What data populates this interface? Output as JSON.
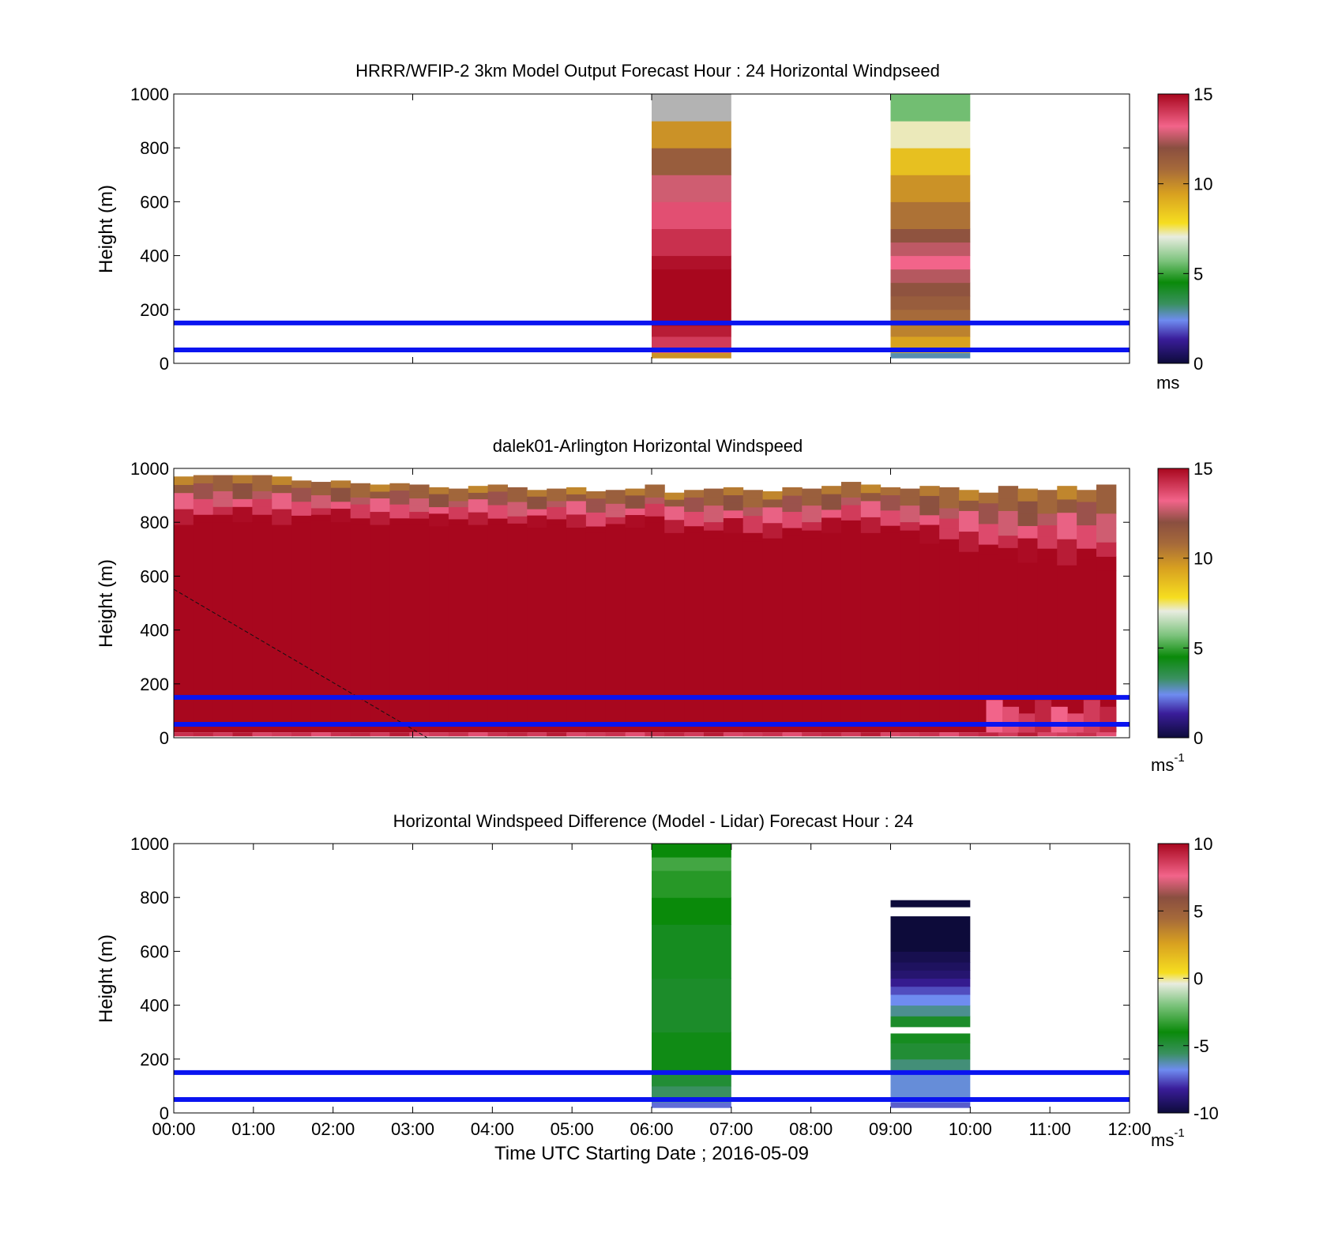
{
  "chart_data": [
    {
      "type": "heatmap",
      "title": "HRRR/WFIP-2 3km Model Output   Forecast Hour : 24 Horizontal Windpseed",
      "ylabel": "Height (m)",
      "ylim": [
        0,
        1000
      ],
      "yticks": [
        "0",
        "200",
        "400",
        "600",
        "800",
        "1000"
      ],
      "xlim_hours": [
        0,
        12
      ],
      "colorbar": {
        "ticks": [
          "0",
          "5",
          "10",
          "15"
        ],
        "range": [
          0,
          15
        ],
        "unit_label": "ms"
      },
      "reference_lines_m": [
        50,
        150
      ],
      "columns": [
        {
          "start_hour": 6,
          "end_hour": 7,
          "cells": [
            {
              "y0": 20,
              "y1": 40,
              "v": 9.8
            },
            {
              "y0": 40,
              "y1": 60,
              "v": 13.4
            },
            {
              "y0": 60,
              "y1": 100,
              "v": 14.0
            },
            {
              "y0": 100,
              "y1": 140,
              "v": 14.6
            },
            {
              "y0": 140,
              "y1": 200,
              "v": 15.0
            },
            {
              "y0": 200,
              "y1": 350,
              "v": 15.0
            },
            {
              "y0": 350,
              "y1": 400,
              "v": 14.8
            },
            {
              "y0": 400,
              "y1": 500,
              "v": 14.2
            },
            {
              "y0": 500,
              "y1": 600,
              "v": 13.6
            },
            {
              "y0": 600,
              "y1": 700,
              "v": 12.8
            },
            {
              "y0": 700,
              "y1": 800,
              "v": 11.4
            },
            {
              "y0": 800,
              "y1": 900,
              "v": 9.8
            },
            {
              "y0": 900,
              "y1": 1000,
              "v": null,
              "note": "grey"
            }
          ]
        },
        {
          "start_hour": 9,
          "end_hour": 10,
          "cells": [
            {
              "y0": 20,
              "y1": 40,
              "v": 2.8
            },
            {
              "y0": 40,
              "y1": 60,
              "v": 8.6
            },
            {
              "y0": 60,
              "y1": 100,
              "v": 9.4
            },
            {
              "y0": 100,
              "y1": 140,
              "v": 10.2
            },
            {
              "y0": 140,
              "y1": 200,
              "v": 10.8
            },
            {
              "y0": 200,
              "y1": 250,
              "v": 11.4
            },
            {
              "y0": 250,
              "y1": 300,
              "v": 11.8
            },
            {
              "y0": 300,
              "y1": 350,
              "v": 12.5
            },
            {
              "y0": 350,
              "y1": 400,
              "v": 13.2
            },
            {
              "y0": 400,
              "y1": 450,
              "v": 12.6
            },
            {
              "y0": 450,
              "y1": 500,
              "v": 11.8
            },
            {
              "y0": 500,
              "y1": 600,
              "v": 10.6
            },
            {
              "y0": 600,
              "y1": 700,
              "v": 9.8
            },
            {
              "y0": 700,
              "y1": 800,
              "v": 8.6
            },
            {
              "y0": 800,
              "y1": 900,
              "v": 7.2
            },
            {
              "y0": 900,
              "y1": 1000,
              "v": 5.6
            }
          ]
        }
      ]
    },
    {
      "type": "heatmap",
      "title": "dalek01-Arlington  Horizontal Windspeed",
      "ylabel": "Height (m)",
      "ylim": [
        0,
        1000
      ],
      "yticks": [
        "0",
        "200",
        "400",
        "600",
        "800",
        "1000"
      ],
      "xlim_hours": [
        0,
        12
      ],
      "colorbar": {
        "ticks": [
          "0",
          "5",
          "10",
          "15"
        ],
        "range": [
          0,
          15
        ],
        "unit_label": "ms",
        "unit_exp": "-1"
      },
      "reference_lines_m": [
        50,
        150
      ],
      "data_extent_hours": [
        0,
        11.83
      ],
      "columns_per_hour": 4,
      "core_value": 15,
      "top_profile_m": [
        970,
        975,
        975,
        975,
        975,
        970,
        955,
        950,
        955,
        945,
        940,
        945,
        940,
        930,
        925,
        935,
        940,
        930,
        920,
        925,
        930,
        915,
        920,
        925,
        940,
        910,
        920,
        925,
        930,
        920,
        915,
        930,
        925,
        935,
        950,
        940,
        930,
        925,
        935,
        930,
        920,
        910,
        935,
        925,
        920,
        935,
        920,
        940
      ],
      "core_top_m": [
        790,
        800,
        800,
        800,
        800,
        790,
        800,
        805,
        800,
        790,
        790,
        790,
        790,
        785,
        790,
        790,
        790,
        770,
        780,
        790,
        780,
        760,
        770,
        780,
        800,
        760,
        760,
        740,
        760,
        730,
        740,
        750,
        740,
        760,
        780,
        760,
        760,
        740,
        720,
        700,
        690,
        680,
        660,
        650,
        660,
        640,
        660,
        620
      ],
      "near_ground_values": [
        14.2,
        14.4,
        14.0,
        14.6,
        13.8,
        14.0,
        14.2,
        13.6
      ],
      "lower_right_patch_hours": [
        10.2,
        11.83
      ]
    },
    {
      "type": "heatmap",
      "title": "Horizontal Windspeed Difference (Model - Lidar) Forecast Hour : 24",
      "xlabel": "Time UTC  Starting Date ; 2016-05-09",
      "ylabel": "Height (m)",
      "ylim": [
        0,
        1000
      ],
      "yticks": [
        "0",
        "200",
        "400",
        "600",
        "800",
        "1000"
      ],
      "xlim_hours": [
        0,
        12
      ],
      "xticks": [
        "00:00",
        "01:00",
        "02:00",
        "03:00",
        "04:00",
        "05:00",
        "06:00",
        "07:00",
        "08:00",
        "09:00",
        "10:00",
        "11:00",
        "12:00"
      ],
      "colorbar": {
        "ticks": [
          "-10",
          "-5",
          "0",
          "5",
          "10"
        ],
        "range": [
          -10,
          10
        ],
        "unit_label": "ms",
        "unit_exp": "-1"
      },
      "reference_lines_m": [
        50,
        150
      ],
      "columns": [
        {
          "start_hour": 6,
          "end_hour": 7,
          "cells": [
            {
              "y0": 20,
              "y1": 40,
              "v": -7.2
            },
            {
              "y0": 40,
              "y1": 60,
              "v": -6.2
            },
            {
              "y0": 60,
              "y1": 100,
              "v": -5.6
            },
            {
              "y0": 100,
              "y1": 150,
              "v": -4.8
            },
            {
              "y0": 150,
              "y1": 300,
              "v": -4.2
            },
            {
              "y0": 300,
              "y1": 500,
              "v": -4.6
            },
            {
              "y0": 500,
              "y1": 700,
              "v": -4.4
            },
            {
              "y0": 700,
              "y1": 800,
              "v": -4.0
            },
            {
              "y0": 800,
              "y1": 900,
              "v": -3.6
            },
            {
              "y0": 900,
              "y1": 950,
              "v": -3.2
            },
            {
              "y0": 950,
              "y1": 1000,
              "v": -4.0
            }
          ]
        },
        {
          "start_hour": 9,
          "end_hour": 10,
          "cells": [
            {
              "y0": 20,
              "y1": 40,
              "v": -7.4
            },
            {
              "y0": 40,
              "y1": 60,
              "v": -6.8
            },
            {
              "y0": 60,
              "y1": 150,
              "v": -6.6
            },
            {
              "y0": 150,
              "y1": 200,
              "v": -5.8
            },
            {
              "y0": 200,
              "y1": 260,
              "v": -4.8
            },
            {
              "y0": 260,
              "y1": 295,
              "v": -4.4
            },
            {
              "y0": 320,
              "y1": 360,
              "v": -4.6
            },
            {
              "y0": 360,
              "y1": 400,
              "v": -6.0
            },
            {
              "y0": 400,
              "y1": 440,
              "v": -6.8
            },
            {
              "y0": 440,
              "y1": 470,
              "v": -7.6
            },
            {
              "y0": 470,
              "y1": 500,
              "v": -8.4
            },
            {
              "y0": 500,
              "y1": 530,
              "v": -9.0
            },
            {
              "y0": 530,
              "y1": 560,
              "v": -9.3
            },
            {
              "y0": 560,
              "y1": 600,
              "v": -9.6
            },
            {
              "y0": 600,
              "y1": 730,
              "v": -10.0
            },
            {
              "y0": 765,
              "y1": 790,
              "v": -10.0
            }
          ]
        }
      ]
    }
  ]
}
